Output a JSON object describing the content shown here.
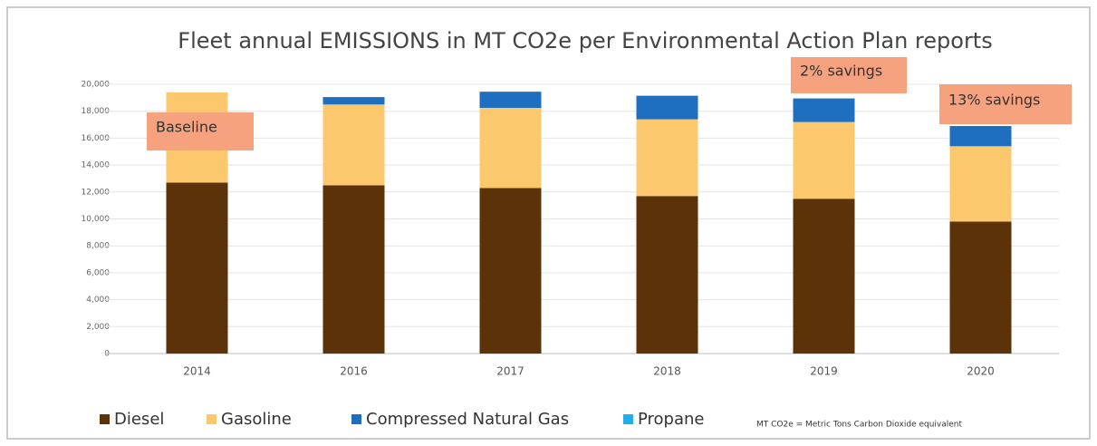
{
  "chart_data": {
    "type": "stacked_bar",
    "title": "Fleet annual EMISSIONS in MT CO2e per Environmental Action Plan reports",
    "categories": [
      "2014",
      "2016",
      "2017",
      "2018",
      "2019",
      "2020"
    ],
    "series": [
      {
        "name": "Diesel",
        "color": "#5c3308",
        "values": [
          12700,
          12500,
          12300,
          11700,
          11500,
          9800
        ]
      },
      {
        "name": "Gasoline",
        "color": "#fcc86e",
        "values": [
          6700,
          6000,
          5950,
          5700,
          5700,
          5600
        ]
      },
      {
        "name": "Compressed Natural Gas",
        "color": "#1f6fc0",
        "values": [
          0,
          550,
          1200,
          1750,
          1750,
          1500
        ]
      },
      {
        "name": "Propane",
        "color": "#1fb0e8",
        "values": [
          0,
          0,
          0,
          0,
          0,
          0
        ]
      }
    ],
    "ylim": [
      0,
      20000
    ],
    "yticks": [
      0,
      {
        "value": 2000,
        "label": "2,000"
      },
      {
        "value": 4000,
        "label": "4,000"
      },
      {
        "value": 6000,
        "label": "6,000"
      },
      {
        "value": 8000,
        "label": "8,000"
      },
      {
        "value": 10000,
        "label": "10,000"
      },
      {
        "value": 12000,
        "label": "12,000"
      },
      {
        "value": 14000,
        "label": "14,000"
      },
      {
        "value": 16000,
        "label": "16,000"
      },
      {
        "value": 18000,
        "label": "18,000"
      },
      {
        "value": 20000,
        "label": "20,000"
      }
    ],
    "grid": true,
    "legend": "bottom",
    "annotations": [
      "Baseline",
      "2% savings",
      "13% savings"
    ],
    "footnote": "MT CO2e = Metric Tons Carbon Dioxide equivalent"
  }
}
